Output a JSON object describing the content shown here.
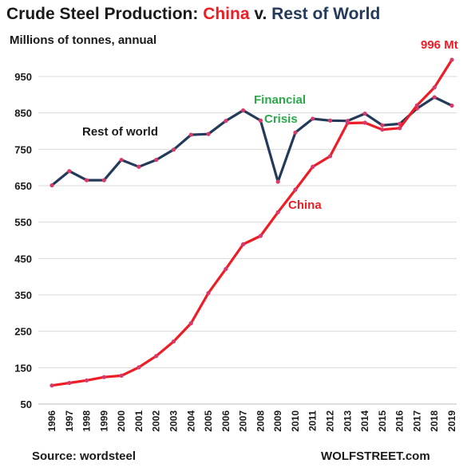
{
  "header": {
    "title_prefix": "Crude Steel Production: ",
    "title_china": "China",
    "title_mid": " v. ",
    "title_row": "Rest of World",
    "subtitle": "Millions of tonnes, annual"
  },
  "footer": {
    "source": "Source: wordsteel",
    "brand": "WOLFSTREET.com"
  },
  "colors": {
    "china": "#ee1c25",
    "rest_of_world": "#243a5a",
    "financial_crisis": "#2aa84a",
    "marker": "#d63b6b",
    "grid": "#d9d9d9"
  },
  "chart_data": {
    "type": "line",
    "title": "Crude Steel Production: China v. Rest of World",
    "subtitle": "Millions of tonnes, annual",
    "x": [
      "1996",
      "1997",
      "1998",
      "1999",
      "2000",
      "2001",
      "2002",
      "2003",
      "2004",
      "2005",
      "2006",
      "2007",
      "2008",
      "2009",
      "2010",
      "2011",
      "2012",
      "2013",
      "2014",
      "2015",
      "2016",
      "2017",
      "2018",
      "2019"
    ],
    "ylim": [
      50,
      1000
    ],
    "yticks": [
      50,
      150,
      250,
      350,
      450,
      550,
      650,
      750,
      850,
      950
    ],
    "grid": true,
    "series": [
      {
        "name": "China",
        "values": [
          101,
          108,
          115,
          124,
          128,
          151,
          182,
          222,
          272,
          355,
          421,
          489,
          512,
          577,
          639,
          702,
          731,
          822,
          823,
          804,
          808,
          871,
          920,
          996
        ]
      },
      {
        "name": "Rest of world",
        "values": [
          651,
          690,
          665,
          665,
          721,
          702,
          721,
          749,
          790,
          792,
          828,
          857,
          829,
          661,
          796,
          834,
          829,
          828,
          848,
          816,
          820,
          862,
          893,
          870
        ]
      }
    ],
    "annotations": [
      {
        "text": "996 Mt",
        "series": "China",
        "x": "2019"
      },
      {
        "text": "Financial",
        "x": "2008"
      },
      {
        "text": "Crisis",
        "x": "2008"
      },
      {
        "text": "China",
        "series": "China"
      },
      {
        "text": "Rest of world",
        "series": "Rest of world"
      }
    ]
  }
}
